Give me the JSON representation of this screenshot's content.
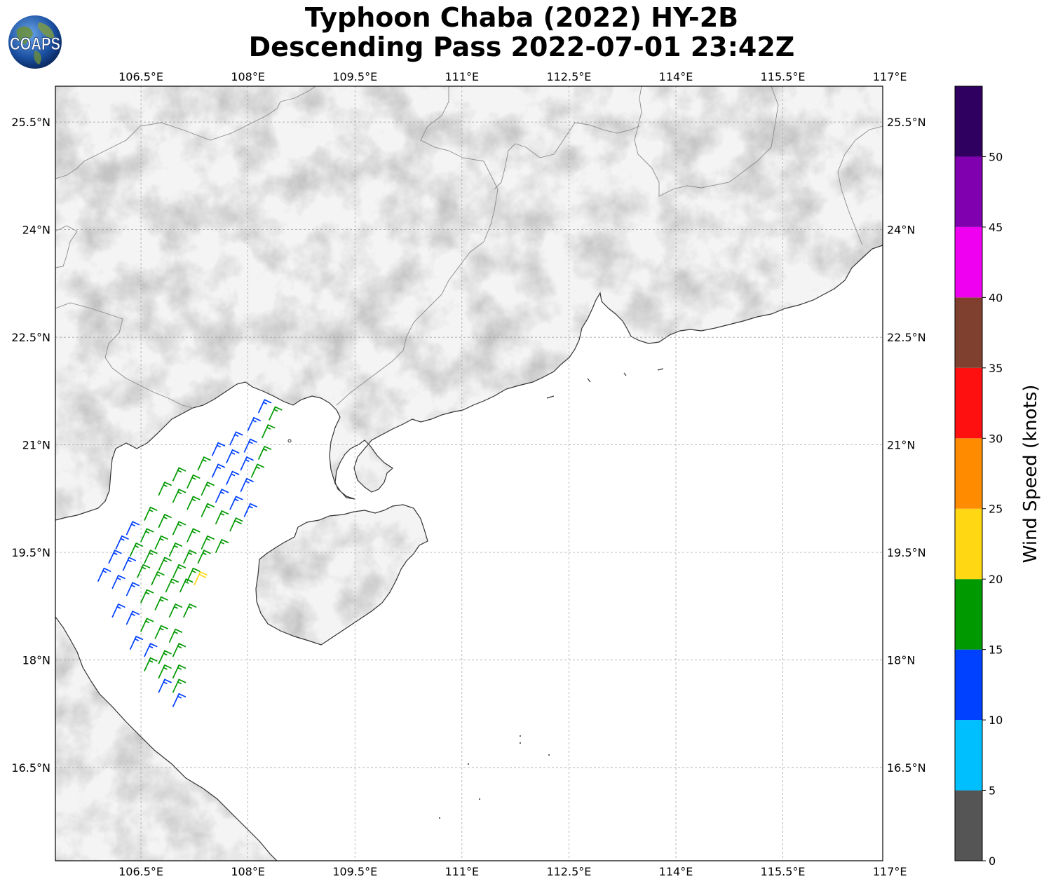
{
  "title": {
    "line1": "Typhoon Chaba (2022) HY-2B",
    "line2": "Descending Pass 2022-07-01 23:42Z"
  },
  "logo": {
    "text": "COAPS",
    "icon": "globe-icon"
  },
  "map": {
    "projection": "plate-carree",
    "lon_range": [
      105.3,
      116.9
    ],
    "lat_range": [
      15.2,
      26.0
    ],
    "lon_ticks": [
      "106.5°E",
      "108°E",
      "109.5°E",
      "111°E",
      "112.5°E",
      "114°E",
      "115.5°E",
      "117°E"
    ],
    "lat_ticks": [
      "25.5°N",
      "24°N",
      "22.5°N",
      "21°N",
      "19.5°N",
      "18°N",
      "16.5°N"
    ],
    "gridlines": true,
    "background": "grayscale-topography"
  },
  "colorbar": {
    "label": "Wind Speed (knots)",
    "ticks": [
      "0",
      "5",
      "10",
      "15",
      "20",
      "25",
      "30",
      "35",
      "40",
      "45",
      "50"
    ],
    "bins": [
      {
        "min": 0,
        "max": 5,
        "color": "#555555"
      },
      {
        "min": 5,
        "max": 10,
        "color": "#00bfff"
      },
      {
        "min": 10,
        "max": 15,
        "color": "#0040ff"
      },
      {
        "min": 15,
        "max": 20,
        "color": "#009900"
      },
      {
        "min": 20,
        "max": 25,
        "color": "#ffd712"
      },
      {
        "min": 25,
        "max": 30,
        "color": "#ff8c00"
      },
      {
        "min": 30,
        "max": 35,
        "color": "#ff1010"
      },
      {
        "min": 35,
        "max": 40,
        "color": "#804030"
      },
      {
        "min": 40,
        "max": 45,
        "color": "#f000f0"
      },
      {
        "min": 45,
        "max": 50,
        "color": "#8000b0"
      },
      {
        "min": 50,
        "max": 55,
        "color": "#300060"
      }
    ]
  },
  "wind_barbs": [
    {
      "lon": 108.15,
      "lat": 21.45,
      "speed": 13
    },
    {
      "lon": 108.3,
      "lat": 21.35,
      "speed": 16
    },
    {
      "lon": 108.0,
      "lat": 21.2,
      "speed": 13
    },
    {
      "lon": 108.2,
      "lat": 21.1,
      "speed": 16
    },
    {
      "lon": 107.75,
      "lat": 21.0,
      "speed": 13
    },
    {
      "lon": 107.95,
      "lat": 20.9,
      "speed": 13
    },
    {
      "lon": 108.15,
      "lat": 20.8,
      "speed": 16
    },
    {
      "lon": 107.5,
      "lat": 20.85,
      "speed": 13
    },
    {
      "lon": 107.7,
      "lat": 20.75,
      "speed": 13
    },
    {
      "lon": 107.9,
      "lat": 20.65,
      "speed": 13
    },
    {
      "lon": 108.05,
      "lat": 20.55,
      "speed": 16
    },
    {
      "lon": 107.3,
      "lat": 20.65,
      "speed": 16
    },
    {
      "lon": 107.5,
      "lat": 20.55,
      "speed": 13
    },
    {
      "lon": 107.7,
      "lat": 20.45,
      "speed": 13
    },
    {
      "lon": 107.9,
      "lat": 20.35,
      "speed": 13
    },
    {
      "lon": 106.95,
      "lat": 20.5,
      "speed": 16
    },
    {
      "lon": 107.15,
      "lat": 20.4,
      "speed": 16
    },
    {
      "lon": 107.35,
      "lat": 20.3,
      "speed": 16
    },
    {
      "lon": 107.55,
      "lat": 20.2,
      "speed": 13
    },
    {
      "lon": 107.75,
      "lat": 20.1,
      "speed": 13
    },
    {
      "lon": 107.95,
      "lat": 20.0,
      "speed": 13
    },
    {
      "lon": 106.75,
      "lat": 20.3,
      "speed": 16
    },
    {
      "lon": 106.95,
      "lat": 20.2,
      "speed": 16
    },
    {
      "lon": 107.15,
      "lat": 20.1,
      "speed": 16
    },
    {
      "lon": 107.35,
      "lat": 20.0,
      "speed": 16
    },
    {
      "lon": 107.55,
      "lat": 19.9,
      "speed": 16
    },
    {
      "lon": 107.75,
      "lat": 19.8,
      "speed": 18
    },
    {
      "lon": 106.55,
      "lat": 19.95,
      "speed": 16
    },
    {
      "lon": 106.75,
      "lat": 19.85,
      "speed": 16
    },
    {
      "lon": 106.95,
      "lat": 19.75,
      "speed": 16
    },
    {
      "lon": 107.15,
      "lat": 19.65,
      "speed": 16
    },
    {
      "lon": 107.35,
      "lat": 19.55,
      "speed": 16
    },
    {
      "lon": 107.55,
      "lat": 19.5,
      "speed": 16
    },
    {
      "lon": 106.3,
      "lat": 19.75,
      "speed": 13
    },
    {
      "lon": 106.5,
      "lat": 19.65,
      "speed": 16
    },
    {
      "lon": 106.7,
      "lat": 19.55,
      "speed": 16
    },
    {
      "lon": 106.9,
      "lat": 19.45,
      "speed": 16
    },
    {
      "lon": 107.1,
      "lat": 19.35,
      "speed": 16
    },
    {
      "lon": 107.3,
      "lat": 19.35,
      "speed": 16
    },
    {
      "lon": 106.15,
      "lat": 19.55,
      "speed": 13
    },
    {
      "lon": 106.35,
      "lat": 19.45,
      "speed": 16
    },
    {
      "lon": 106.55,
      "lat": 19.35,
      "speed": 16
    },
    {
      "lon": 106.75,
      "lat": 19.25,
      "speed": 16
    },
    {
      "lon": 106.95,
      "lat": 19.15,
      "speed": 16
    },
    {
      "lon": 107.15,
      "lat": 19.1,
      "speed": 16
    },
    {
      "lon": 106.05,
      "lat": 19.35,
      "speed": 13
    },
    {
      "lon": 106.25,
      "lat": 19.25,
      "speed": 13
    },
    {
      "lon": 106.45,
      "lat": 19.15,
      "speed": 16
    },
    {
      "lon": 106.65,
      "lat": 19.05,
      "speed": 16
    },
    {
      "lon": 106.85,
      "lat": 18.95,
      "speed": 16
    },
    {
      "lon": 107.05,
      "lat": 18.95,
      "speed": 16
    },
    {
      "lon": 107.25,
      "lat": 19.05,
      "speed": 21
    },
    {
      "lon": 105.9,
      "lat": 19.1,
      "speed": 13
    },
    {
      "lon": 106.1,
      "lat": 19.0,
      "speed": 13
    },
    {
      "lon": 106.3,
      "lat": 18.9,
      "speed": 13
    },
    {
      "lon": 106.5,
      "lat": 18.8,
      "speed": 16
    },
    {
      "lon": 106.7,
      "lat": 18.7,
      "speed": 16
    },
    {
      "lon": 106.9,
      "lat": 18.6,
      "speed": 16
    },
    {
      "lon": 107.1,
      "lat": 18.6,
      "speed": 16
    },
    {
      "lon": 106.1,
      "lat": 18.6,
      "speed": 13
    },
    {
      "lon": 106.3,
      "lat": 18.5,
      "speed": 13
    },
    {
      "lon": 106.5,
      "lat": 18.4,
      "speed": 16
    },
    {
      "lon": 106.7,
      "lat": 18.3,
      "speed": 16
    },
    {
      "lon": 106.9,
      "lat": 18.25,
      "speed": 16
    },
    {
      "lon": 106.35,
      "lat": 18.15,
      "speed": 13
    },
    {
      "lon": 106.55,
      "lat": 18.05,
      "speed": 13
    },
    {
      "lon": 106.75,
      "lat": 17.95,
      "speed": 16
    },
    {
      "lon": 106.95,
      "lat": 18.05,
      "speed": 16
    },
    {
      "lon": 106.55,
      "lat": 17.85,
      "speed": 16
    },
    {
      "lon": 106.75,
      "lat": 17.75,
      "speed": 16
    },
    {
      "lon": 106.95,
      "lat": 17.75,
      "speed": 16
    },
    {
      "lon": 106.75,
      "lat": 17.55,
      "speed": 13
    },
    {
      "lon": 106.95,
      "lat": 17.55,
      "speed": 16
    },
    {
      "lon": 106.95,
      "lat": 17.35,
      "speed": 13
    }
  ]
}
